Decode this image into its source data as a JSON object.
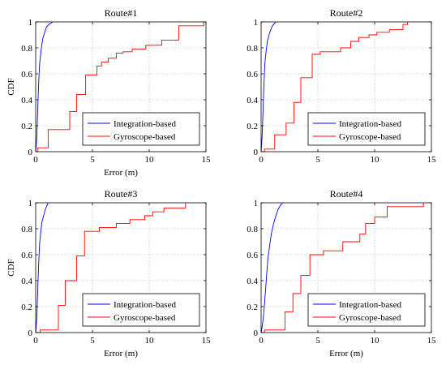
{
  "colors": {
    "series_1": "#0000ff",
    "series_2": "#ff0000",
    "axis": "#000000",
    "grid": "#b0b0b0"
  },
  "chart_data": [
    {
      "type": "line",
      "title": "Route#1",
      "xlabel": "Error (m)",
      "ylabel": "CDF",
      "xlim": [
        0,
        15
      ],
      "ylim": [
        0,
        1
      ],
      "xticks": [
        "0",
        "5",
        "10",
        "15"
      ],
      "yticks": [
        "0",
        "0.2",
        "0.4",
        "0.6",
        "0.8",
        "1"
      ],
      "grid": true,
      "legend_position": "bottom-right",
      "series": [
        {
          "name": "Integration-based",
          "kind": "curve",
          "x": [
            0,
            0.05,
            0.1,
            0.15,
            0.2,
            0.25,
            0.3,
            0.35,
            0.45,
            0.55,
            0.65,
            0.8,
            0.95,
            1.15,
            1.5
          ],
          "y": [
            0,
            0.05,
            0.12,
            0.25,
            0.38,
            0.5,
            0.6,
            0.68,
            0.76,
            0.83,
            0.88,
            0.92,
            0.96,
            0.98,
            1.0
          ]
        },
        {
          "name": "Gyroscope-based",
          "kind": "step",
          "x": [
            0,
            0.2,
            1.1,
            3.0,
            3.6,
            4.4,
            5.4,
            5.8,
            6.4,
            7.1,
            7.7,
            8.5,
            9.7,
            11.1,
            12.6,
            14.8
          ],
          "y": [
            0,
            0.03,
            0.17,
            0.31,
            0.44,
            0.59,
            0.66,
            0.69,
            0.72,
            0.76,
            0.77,
            0.79,
            0.82,
            0.86,
            0.97,
            1.0
          ]
        }
      ]
    },
    {
      "type": "line",
      "title": "Route#2",
      "xlabel": "",
      "ylabel": "",
      "xlim": [
        0,
        15
      ],
      "ylim": [
        0,
        1
      ],
      "xticks": [
        "0",
        "5",
        "10",
        "15"
      ],
      "yticks": [
        "0",
        "0.2",
        "0.4",
        "0.6",
        "0.8",
        "1"
      ],
      "grid": true,
      "legend_position": "bottom-right",
      "series": [
        {
          "name": "Integration-based",
          "kind": "curve",
          "x": [
            0,
            0.05,
            0.1,
            0.15,
            0.2,
            0.25,
            0.3,
            0.35,
            0.45,
            0.55,
            0.7,
            0.85,
            1.0,
            1.2,
            1.3
          ],
          "y": [
            0,
            0.06,
            0.14,
            0.27,
            0.4,
            0.52,
            0.62,
            0.7,
            0.78,
            0.85,
            0.9,
            0.94,
            0.97,
            0.99,
            1.0
          ]
        },
        {
          "name": "Gyroscope-based",
          "kind": "step",
          "x": [
            0,
            0.3,
            1.2,
            2.2,
            2.9,
            3.5,
            4.5,
            5.2,
            7.0,
            7.9,
            8.6,
            9.5,
            10.2,
            11.3,
            12.5,
            12.9
          ],
          "y": [
            0,
            0.02,
            0.13,
            0.22,
            0.38,
            0.57,
            0.75,
            0.77,
            0.8,
            0.85,
            0.88,
            0.9,
            0.92,
            0.94,
            0.98,
            1.0
          ]
        }
      ]
    },
    {
      "type": "line",
      "title": "Route#3",
      "xlabel": "Error (m)",
      "ylabel": "CDF",
      "xlim": [
        0,
        15
      ],
      "ylim": [
        0,
        1
      ],
      "xticks": [
        "0",
        "5",
        "10",
        "15"
      ],
      "yticks": [
        "0",
        "0.2",
        "0.4",
        "0.6",
        "0.8",
        "1"
      ],
      "grid": true,
      "legend_position": "bottom-right",
      "series": [
        {
          "name": "Integration-based",
          "kind": "curve",
          "x": [
            0,
            0.05,
            0.1,
            0.15,
            0.2,
            0.25,
            0.3,
            0.35,
            0.45,
            0.55,
            0.7,
            0.85,
            1.0,
            1.1
          ],
          "y": [
            0,
            0.05,
            0.12,
            0.25,
            0.38,
            0.5,
            0.6,
            0.69,
            0.78,
            0.85,
            0.9,
            0.95,
            0.98,
            1.0
          ]
        },
        {
          "name": "Gyroscope-based",
          "kind": "step",
          "x": [
            0,
            0.4,
            2.0,
            2.6,
            3.6,
            4.3,
            5.6,
            7.1,
            8.3,
            9.6,
            10.3,
            11.3,
            13.2
          ],
          "y": [
            0,
            0.02,
            0.21,
            0.4,
            0.59,
            0.78,
            0.81,
            0.84,
            0.87,
            0.9,
            0.93,
            0.96,
            1.0
          ]
        }
      ]
    },
    {
      "type": "line",
      "title": "Route#4",
      "xlabel": "Error (m)",
      "ylabel": "",
      "xlim": [
        0,
        15
      ],
      "ylim": [
        0,
        1
      ],
      "xticks": [
        "0",
        "5",
        "10",
        "15"
      ],
      "yticks": [
        "0",
        "0.2",
        "0.4",
        "0.6",
        "0.8",
        "1"
      ],
      "grid": true,
      "legend_position": "bottom-right",
      "series": [
        {
          "name": "Integration-based",
          "kind": "curve",
          "x": [
            0,
            0.1,
            0.2,
            0.3,
            0.4,
            0.5,
            0.6,
            0.75,
            0.9,
            1.1,
            1.3,
            1.5,
            1.7,
            1.9
          ],
          "y": [
            0,
            0.05,
            0.12,
            0.22,
            0.34,
            0.46,
            0.57,
            0.67,
            0.76,
            0.84,
            0.9,
            0.95,
            0.98,
            1.0
          ]
        },
        {
          "name": "Gyroscope-based",
          "kind": "step",
          "x": [
            0,
            0.3,
            2.1,
            2.8,
            3.5,
            4.3,
            5.5,
            7.2,
            8.7,
            9.2,
            10.0,
            11.1,
            14.3
          ],
          "y": [
            0,
            0.02,
            0.16,
            0.3,
            0.44,
            0.6,
            0.63,
            0.7,
            0.76,
            0.84,
            0.89,
            0.97,
            1.0
          ]
        }
      ]
    }
  ]
}
